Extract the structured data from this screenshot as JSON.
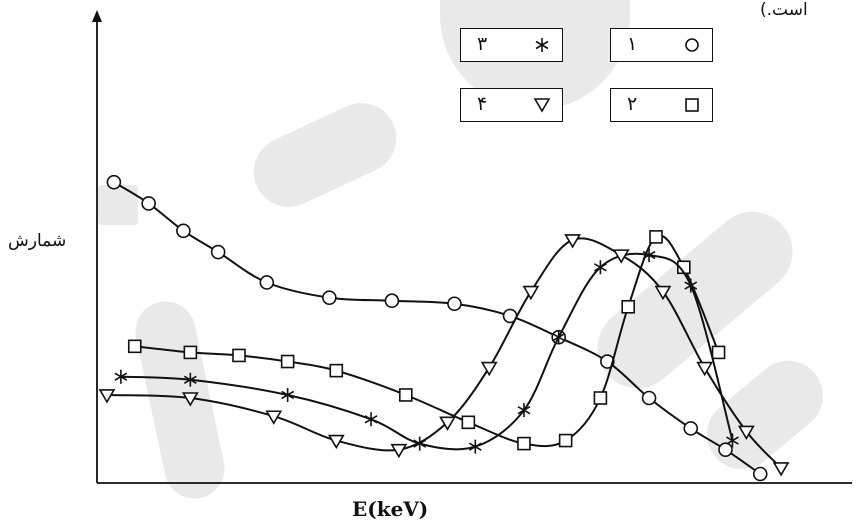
{
  "corner_text": "است.)",
  "chart_data": {
    "type": "line",
    "ylabel": "شمارش",
    "xlabel": "E(keV)",
    "xlim": [
      0,
      100
    ],
    "ylim": [
      0,
      100
    ],
    "grid": false,
    "legend": "top-right",
    "series": [
      {
        "name": "۱",
        "marker": "circle",
        "x": [
          2,
          7,
          12,
          17,
          24,
          33,
          42,
          51,
          59,
          66,
          73,
          79,
          85,
          90,
          95
        ],
        "y": [
          96,
          89,
          80,
          73,
          63,
          58,
          57,
          56,
          52,
          45,
          37,
          25,
          15,
          8,
          0
        ]
      },
      {
        "name": "۲",
        "marker": "square",
        "x": [
          5,
          13,
          20,
          27,
          34,
          44,
          53,
          61,
          67,
          72,
          76,
          80,
          84,
          89
        ],
        "y": [
          42,
          40,
          39,
          37,
          34,
          26,
          17,
          10,
          11,
          25,
          55,
          78,
          68,
          40
        ]
      },
      {
        "name": "۳",
        "marker": "asterisk",
        "x": [
          3,
          13,
          27,
          39,
          46,
          54,
          61,
          66,
          72,
          79,
          85,
          91
        ],
        "y": [
          32,
          31,
          26,
          18,
          10,
          9,
          21,
          45,
          68,
          72,
          62,
          11
        ]
      },
      {
        "name": "۴",
        "marker": "triangle",
        "x": [
          1,
          13,
          25,
          34,
          43,
          50,
          56,
          62,
          68,
          75,
          81,
          87,
          93,
          98
        ],
        "y": [
          26,
          25,
          19,
          11,
          8,
          17,
          35,
          60,
          77,
          72,
          60,
          35,
          14,
          2
        ]
      }
    ]
  }
}
